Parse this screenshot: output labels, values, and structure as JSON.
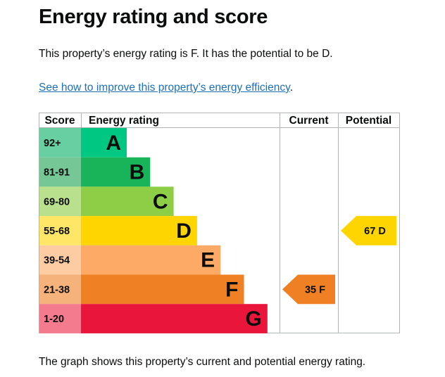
{
  "page": {
    "title": "Energy rating and score",
    "summary": "This property’s energy rating is F. It has the potential to be D.",
    "link_text": "See how to improve this property’s energy efficiency",
    "link_suffix": ".",
    "caption": "The graph shows this property’s current and potential energy rating."
  },
  "chart_data": {
    "type": "table",
    "headers": {
      "score": "Score",
      "rating": "Energy rating",
      "current": "Current",
      "potential": "Potential"
    },
    "bands": [
      {
        "score": "92+",
        "letter": "A",
        "color": "#00c781",
        "score_color": "#68cfa3"
      },
      {
        "score": "81-91",
        "letter": "B",
        "color": "#19b459",
        "score_color": "#75c895"
      },
      {
        "score": "69-80",
        "letter": "C",
        "color": "#8dce46",
        "score_color": "#b9e08d"
      },
      {
        "score": "55-68",
        "letter": "D",
        "color": "#ffd500",
        "score_color": "#ffe666"
      },
      {
        "score": "39-54",
        "letter": "E",
        "color": "#fcaa65",
        "score_color": "#fdcca3"
      },
      {
        "score": "21-38",
        "letter": "F",
        "color": "#ef8023",
        "score_color": "#f5b37b"
      },
      {
        "score": "1-20",
        "letter": "G",
        "color": "#e9153b",
        "score_color": "#f47a8e"
      }
    ],
    "current": {
      "score": 35,
      "letter": "F",
      "label": "35  F",
      "color": "#ef8023"
    },
    "potential": {
      "score": 67,
      "letter": "D",
      "label": "67  D",
      "color": "#ffd500"
    }
  }
}
